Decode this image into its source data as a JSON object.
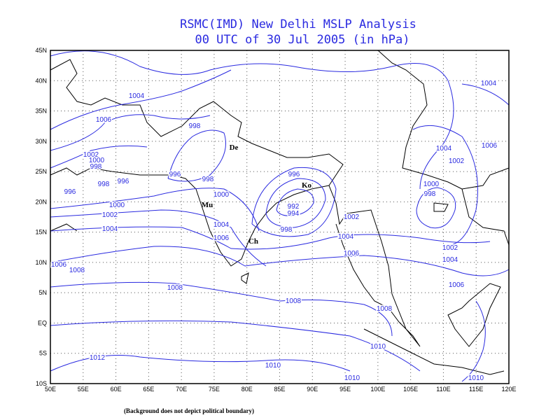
{
  "title": "RSMC(IMD) New Delhi MSLP Analysis",
  "subtitle": "00 UTC of 30 Jul 2005 (in hPa)",
  "footnote": "(Background does not depict political boundary)",
  "lat_labels": [
    "45N",
    "40N",
    "35N",
    "30N",
    "25N",
    "20N",
    "15N",
    "10N",
    "5N",
    "EQ",
    "5S",
    "10S"
  ],
  "lon_labels": [
    "50E",
    "55E",
    "60E",
    "65E",
    "70E",
    "75E",
    "80E",
    "85E",
    "90E",
    "95E",
    "100E",
    "105E",
    "110E",
    "115E",
    "120E"
  ],
  "cities": [
    "De",
    "Ko",
    "Mu",
    "Ch"
  ],
  "contour_labels": [
    "1004",
    "1006",
    "998",
    "1002",
    "1000",
    "998",
    "996",
    "998",
    "996",
    "996",
    "998",
    "1000",
    "1000",
    "1002",
    "1004",
    "1004",
    "1006",
    "1006",
    "1008",
    "1008",
    "1008",
    "996",
    "992",
    "994",
    "998",
    "1002",
    "1004",
    "1006",
    "1008",
    "1010",
    "1010",
    "1010",
    "1012",
    "1004",
    "1004",
    "1006",
    "1002",
    "1000",
    "998",
    "1002",
    "1004",
    "1006",
    "1010"
  ]
}
